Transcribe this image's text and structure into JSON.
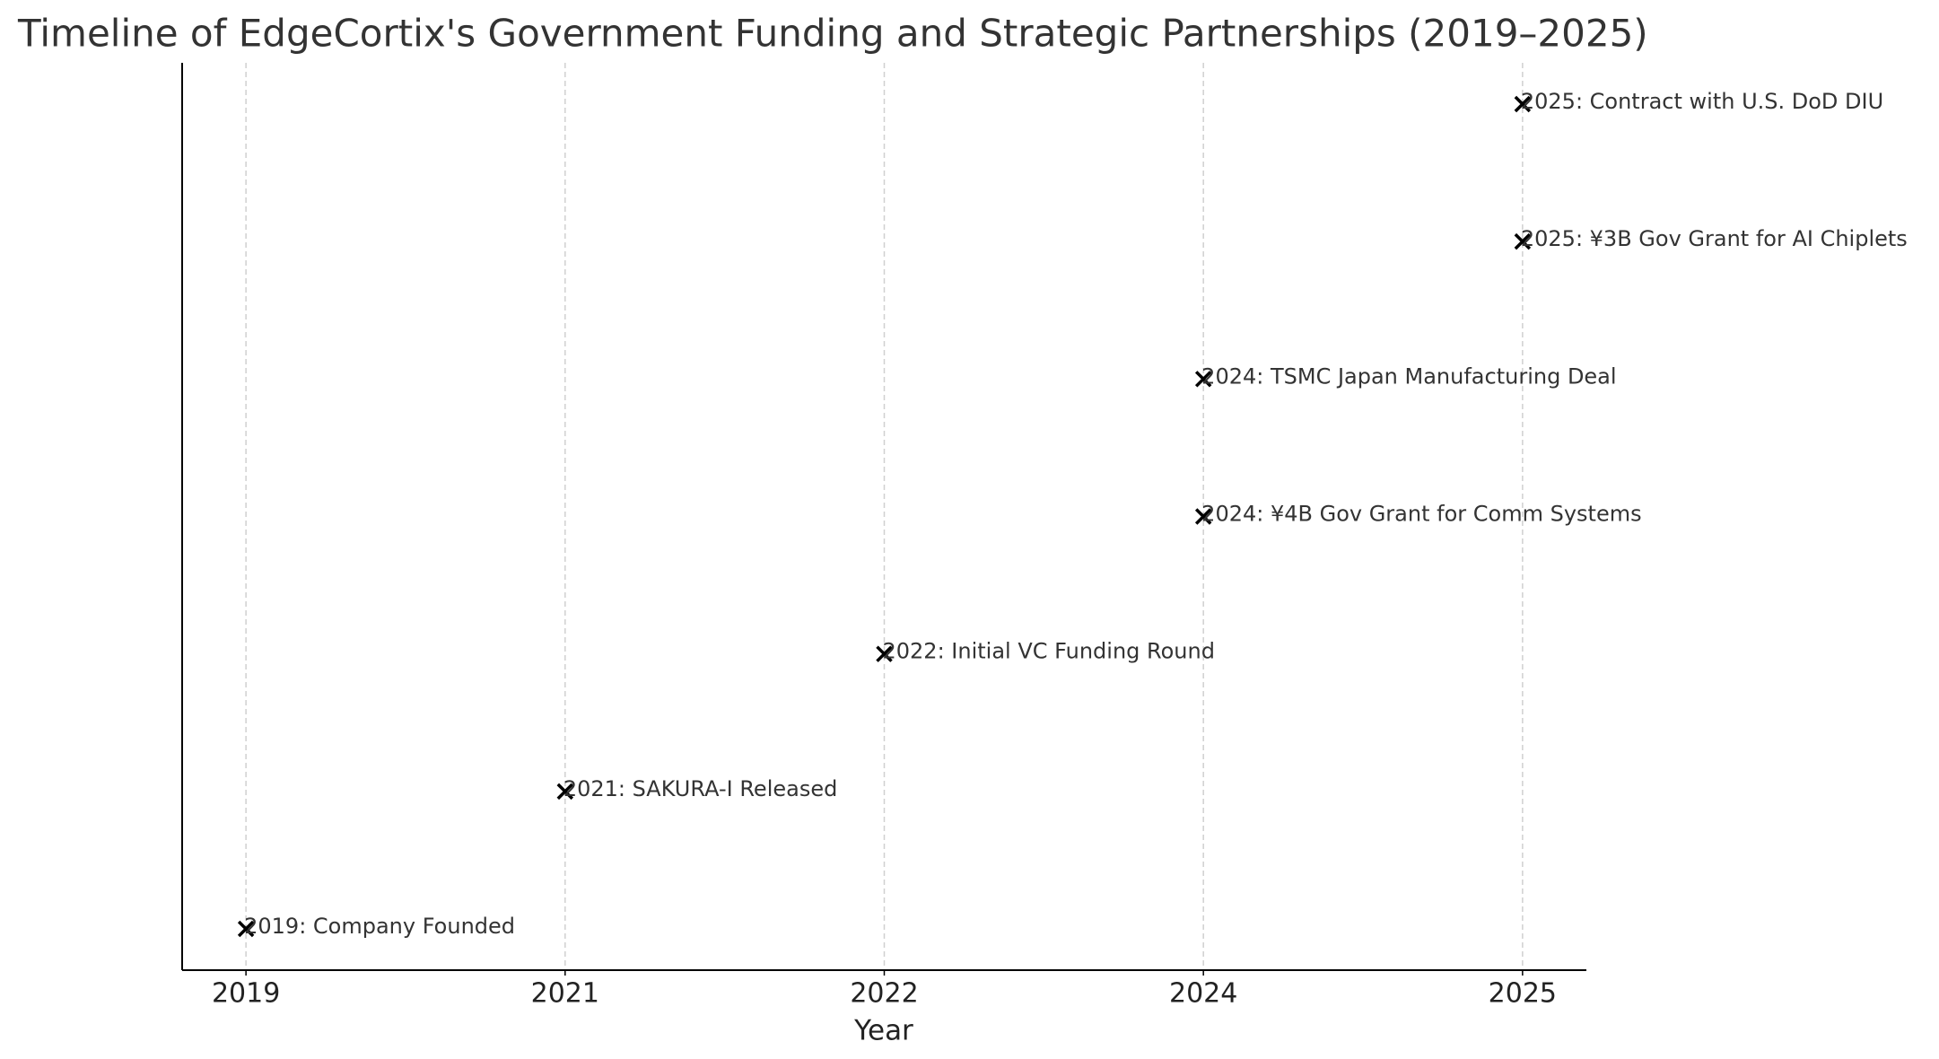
{
  "chart_data": {
    "type": "timeline",
    "title": "Timeline of EdgeCortix's Government Funding and Strategic Partnerships (2019–2025)",
    "x_label": "Year",
    "categories": [
      "2019",
      "2021",
      "2022",
      "2024",
      "2025"
    ],
    "x": [
      "2019",
      "2021",
      "2022",
      "2024",
      "2024",
      "2025",
      "2025"
    ],
    "values": [
      0,
      1,
      2,
      3,
      4,
      5,
      6
    ],
    "labels": [
      "2019: Company Founded",
      "2021: SAKURA-I Released",
      "2022: Initial VC Funding Round",
      "2024: ¥4B Gov Grant for Comm Systems",
      "2024: TSMC Japan Manufacturing Deal",
      "2025: ¥3B Gov Grant for AI Chiplets",
      "2025: Contract with U.S. DoD DIU"
    ],
    "ylim": [
      -0.3,
      6.3
    ],
    "grid": true,
    "color": "#000000"
  }
}
